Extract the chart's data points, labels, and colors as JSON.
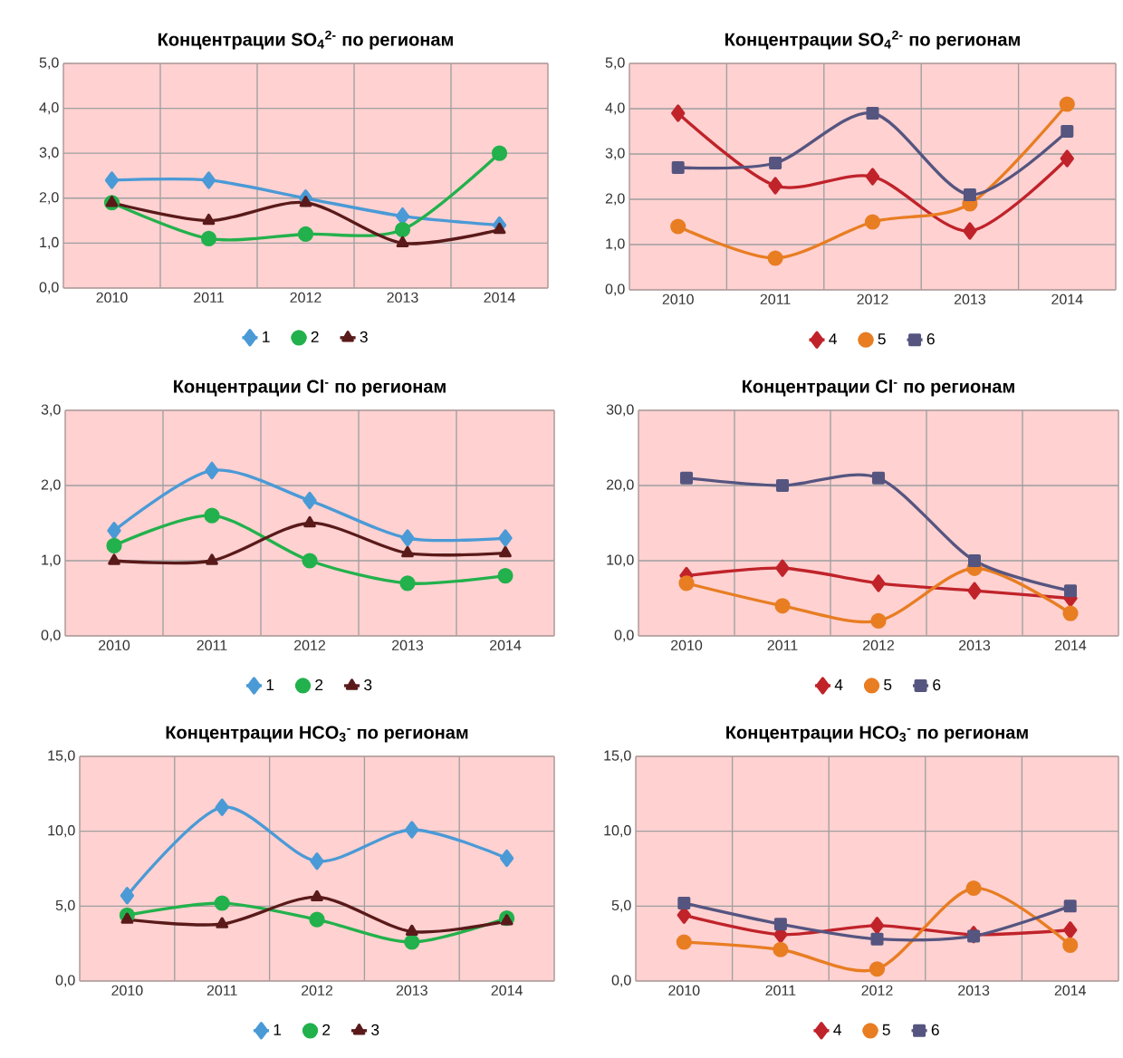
{
  "chart_data": [
    {
      "type": "line",
      "title": "Концентрации SO$_{4}$$^{2-}$ по регионам",
      "categories": [
        "2010",
        "2011",
        "2012",
        "2013",
        "2014"
      ],
      "ylim": [
        0,
        5
      ],
      "yticks": [
        {
          "value": 0,
          "label": "0,0"
        },
        {
          "value": 1,
          "label": "1,0"
        },
        {
          "value": 2,
          "label": "2,0"
        },
        {
          "value": 3,
          "label": "3,0"
        },
        {
          "value": 4,
          "label": "4,0"
        },
        {
          "value": 5,
          "label": "5,0"
        }
      ],
      "grid": true,
      "legend": "bottom",
      "series": [
        {
          "name": "1",
          "color": "#4a9ad6",
          "marker": "diamond",
          "values": [
            2.4,
            2.4,
            2.0,
            1.6,
            1.4
          ]
        },
        {
          "name": "2",
          "color": "#22b14c",
          "marker": "circle",
          "values": [
            1.9,
            1.1,
            1.2,
            1.3,
            3.0
          ]
        },
        {
          "name": "3",
          "color": "#5a1a1a",
          "marker": "triangle",
          "values": [
            1.9,
            1.5,
            1.9,
            1.0,
            1.3
          ]
        }
      ]
    },
    {
      "type": "line",
      "title": "Концентрации SO$_{4}$$^{2-}$ по регионам",
      "categories": [
        "2010",
        "2011",
        "2012",
        "2013",
        "2014"
      ],
      "ylim": [
        0,
        5
      ],
      "yticks": [
        {
          "value": 0,
          "label": "0,0"
        },
        {
          "value": 1,
          "label": "1,0"
        },
        {
          "value": 2,
          "label": "2,0"
        },
        {
          "value": 3,
          "label": "3,0"
        },
        {
          "value": 4,
          "label": "4,0"
        },
        {
          "value": 5,
          "label": "5,0"
        }
      ],
      "grid": true,
      "legend": "bottom",
      "series": [
        {
          "name": "4",
          "color": "#c0232a",
          "marker": "diamond",
          "values": [
            3.9,
            2.3,
            2.5,
            1.3,
            2.9
          ]
        },
        {
          "name": "5",
          "color": "#e87d22",
          "marker": "circle",
          "values": [
            1.4,
            0.7,
            1.5,
            1.9,
            4.1
          ]
        },
        {
          "name": "6",
          "color": "#555580",
          "marker": "square",
          "values": [
            2.7,
            2.8,
            3.9,
            2.1,
            3.5
          ]
        }
      ]
    },
    {
      "type": "line",
      "title": "Концентрации Cl$^{-}$ по регионам",
      "categories": [
        "2010",
        "2011",
        "2012",
        "2013",
        "2014"
      ],
      "ylim": [
        0,
        3
      ],
      "yticks": [
        {
          "value": 0,
          "label": "0,0"
        },
        {
          "value": 1,
          "label": "1,0"
        },
        {
          "value": 2,
          "label": "2,0"
        },
        {
          "value": 3,
          "label": "3,0"
        }
      ],
      "grid": true,
      "legend": "bottom",
      "series": [
        {
          "name": "1",
          "color": "#4a9ad6",
          "marker": "diamond",
          "values": [
            1.4,
            2.2,
            1.8,
            1.3,
            1.3
          ]
        },
        {
          "name": "2",
          "color": "#22b14c",
          "marker": "circle",
          "values": [
            1.2,
            1.6,
            1.0,
            0.7,
            0.8
          ]
        },
        {
          "name": "3",
          "color": "#5a1a1a",
          "marker": "triangle",
          "values": [
            1.0,
            1.0,
            1.5,
            1.1,
            1.1
          ]
        }
      ]
    },
    {
      "type": "line",
      "title": "Концентрации Cl$^{-}$ по регионам",
      "categories": [
        "2010",
        "2011",
        "2012",
        "2013",
        "2014"
      ],
      "ylim": [
        0,
        30
      ],
      "yticks": [
        {
          "value": 0,
          "label": "0,0"
        },
        {
          "value": 10,
          "label": "10,0"
        },
        {
          "value": 20,
          "label": "20,0"
        },
        {
          "value": 30,
          "label": "30,0"
        }
      ],
      "grid": true,
      "legend": "bottom",
      "series": [
        {
          "name": "4",
          "color": "#c0232a",
          "marker": "diamond",
          "values": [
            8,
            9,
            7,
            6,
            5
          ]
        },
        {
          "name": "5",
          "color": "#e87d22",
          "marker": "circle",
          "values": [
            7,
            4,
            2,
            9,
            3
          ]
        },
        {
          "name": "6",
          "color": "#555580",
          "marker": "square",
          "values": [
            21,
            20,
            21,
            10,
            6
          ]
        }
      ]
    },
    {
      "type": "line",
      "title": "Концентрации HCO$_{3}$$^{-}$ по регионам",
      "categories": [
        "2010",
        "2011",
        "2012",
        "2013",
        "2014"
      ],
      "ylim": [
        0,
        15
      ],
      "yticks": [
        {
          "value": 0,
          "label": "0,0"
        },
        {
          "value": 5,
          "label": "5,0"
        },
        {
          "value": 10,
          "label": "10,0"
        },
        {
          "value": 15,
          "label": "15,0"
        }
      ],
      "grid": true,
      "legend": "bottom",
      "series": [
        {
          "name": "1",
          "color": "#4a9ad6",
          "marker": "diamond",
          "values": [
            5.7,
            11.6,
            8.0,
            10.1,
            8.2
          ]
        },
        {
          "name": "2",
          "color": "#22b14c",
          "marker": "circle",
          "values": [
            4.4,
            5.2,
            4.1,
            2.6,
            4.2
          ]
        },
        {
          "name": "3",
          "color": "#5a1a1a",
          "marker": "triangle",
          "values": [
            4.1,
            3.8,
            5.6,
            3.3,
            4.0
          ]
        }
      ]
    },
    {
      "type": "line",
      "title": "Концентрации HCO$_{3}$$^{-}$ по регионам",
      "categories": [
        "2010",
        "2011",
        "2012",
        "2013",
        "2014"
      ],
      "ylim": [
        0,
        15
      ],
      "yticks": [
        {
          "value": 0,
          "label": "0,0"
        },
        {
          "value": 5,
          "label": "5,0"
        },
        {
          "value": 10,
          "label": "10,0"
        },
        {
          "value": 15,
          "label": "15,0"
        }
      ],
      "grid": true,
      "legend": "bottom",
      "series": [
        {
          "name": "4",
          "color": "#c0232a",
          "marker": "diamond",
          "values": [
            4.4,
            3.1,
            3.7,
            3.1,
            3.4
          ]
        },
        {
          "name": "5",
          "color": "#e87d22",
          "marker": "circle",
          "values": [
            2.6,
            2.1,
            0.8,
            6.2,
            2.4
          ]
        },
        {
          "name": "6",
          "color": "#555580",
          "marker": "square",
          "values": [
            5.2,
            3.8,
            2.8,
            3.0,
            5.0
          ]
        }
      ]
    }
  ]
}
